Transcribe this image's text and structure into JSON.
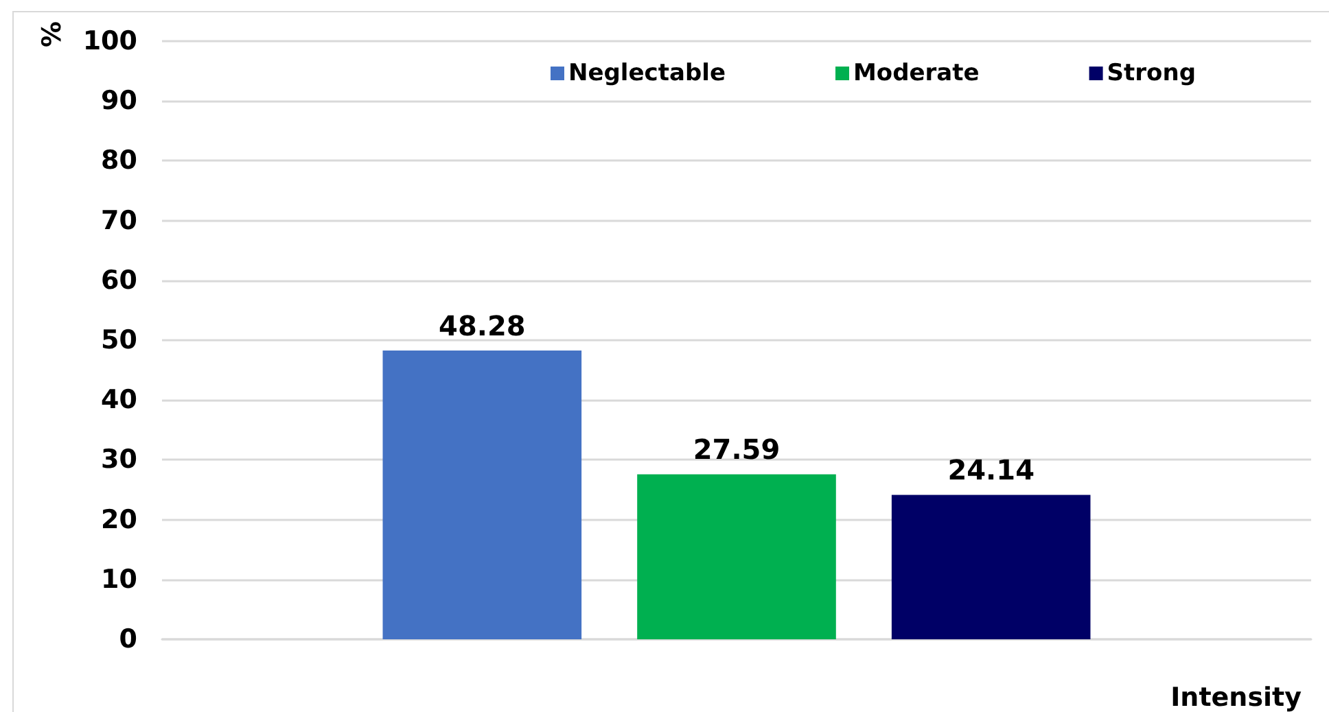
{
  "chart_data": {
    "type": "bar",
    "categories": [
      null
    ],
    "xlabel": "Intensity",
    "ylabel": "%",
    "series": [
      {
        "name": "Neglectable",
        "color": "#4472c4",
        "values": [
          48.28
        ]
      },
      {
        "name": "Moderate",
        "color": "#00b050",
        "values": [
          27.59
        ]
      },
      {
        "name": "Strong",
        "color": "#000066",
        "values": [
          24.14
        ]
      }
    ],
    "ylim": [
      0,
      100
    ],
    "yticks": [
      0,
      10,
      20,
      30,
      40,
      50,
      60,
      70,
      80,
      90,
      100
    ],
    "grid": "y",
    "legend": "top right",
    "data_labels": true
  }
}
